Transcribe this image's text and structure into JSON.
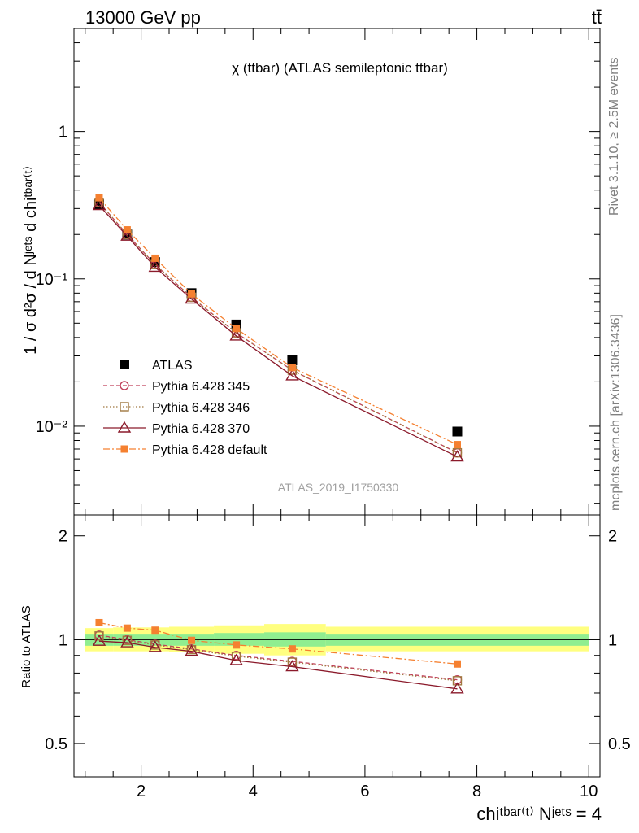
{
  "header": {
    "left": "13000 GeV pp",
    "right": "tt̄"
  },
  "side_labels": {
    "rivet": "Rivet 3.1.10, ≥ 2.5M events",
    "mcplots": "mcplots.cern.ch [arXiv:1306.3436]"
  },
  "chart_data": [
    {
      "type": "scatter",
      "panel": "main",
      "title": "χ (ttbar) (ATLAS semileptonic ttbar)",
      "watermark": "ATLAS_2019_I1750330",
      "ylabel": "1 / σ d²σ / d Nʲᵉᵗˢ d chiᵗᵇᵃʳ⁽ᵗ⁾",
      "yscale": "log",
      "ylim": [
        0.0025,
        5
      ],
      "xlim": [
        0.8,
        10.2
      ],
      "ytick_labels": [
        "10⁻²",
        "10⁻¹",
        "1"
      ],
      "legend_position": "lower-left",
      "x": [
        1.25,
        1.75,
        2.25,
        2.9,
        3.7,
        4.7,
        7.65
      ],
      "series": [
        {
          "name": "ATLAS",
          "color": "#000000",
          "marker": "filled-square",
          "line": "none",
          "values": [
            0.32,
            0.2,
            0.13,
            0.08,
            0.049,
            0.028,
            0.0092
          ]
        },
        {
          "name": "Pythia 6.428 345",
          "color": "#c0405a",
          "marker": "open-circle",
          "line": "dashed",
          "values": [
            0.33,
            0.2,
            0.125,
            0.075,
            0.043,
            0.024,
            0.0066
          ]
        },
        {
          "name": "Pythia 6.428 346",
          "color": "#a07840",
          "marker": "open-square",
          "line": "dotted",
          "values": [
            0.33,
            0.2,
            0.125,
            0.075,
            0.043,
            0.024,
            0.0066
          ]
        },
        {
          "name": "Pythia 6.428 370",
          "color": "#8b1a2b",
          "marker": "open-triangle",
          "line": "solid",
          "values": [
            0.315,
            0.195,
            0.12,
            0.073,
            0.041,
            0.022,
            0.0062
          ]
        },
        {
          "name": "Pythia 6.428 default",
          "color": "#f58030",
          "marker": "filled-square-small",
          "line": "dashdot",
          "values": [
            0.355,
            0.215,
            0.138,
            0.079,
            0.046,
            0.025,
            0.0075
          ]
        }
      ]
    },
    {
      "type": "line",
      "panel": "ratio",
      "ylabel": "Ratio to ATLAS",
      "xlabel": "chiᵗᵇᵃʳ⁽ᵗ⁾ Nʲᵉᵗˢ = 4",
      "yscale": "log",
      "ylim": [
        0.4,
        2.3
      ],
      "xlim": [
        0.8,
        10.2
      ],
      "ytick_labels": [
        "0.5",
        "1",
        "2"
      ],
      "xtick_labels": [
        "2",
        "4",
        "6",
        "8",
        "10"
      ],
      "band_edges": [
        1.0,
        1.5,
        2.0,
        2.5,
        3.3,
        4.2,
        5.3,
        10.0
      ],
      "band_stat": [
        [
          0.96,
          1.04
        ],
        [
          0.96,
          1.04
        ],
        [
          0.96,
          1.04
        ],
        [
          0.96,
          1.04
        ],
        [
          0.96,
          1.045
        ],
        [
          0.955,
          1.05
        ],
        [
          0.96,
          1.04
        ]
      ],
      "band_total": [
        [
          0.925,
          1.08
        ],
        [
          0.925,
          1.085
        ],
        [
          0.925,
          1.085
        ],
        [
          0.92,
          1.09
        ],
        [
          0.91,
          1.1
        ],
        [
          0.9,
          1.11
        ],
        [
          0.925,
          1.09
        ]
      ],
      "x": [
        1.25,
        1.75,
        2.25,
        2.9,
        3.7,
        4.7,
        7.65
      ],
      "series": [
        {
          "name": "Pythia 6.428 345",
          "color": "#c0405a",
          "marker": "open-circle",
          "line": "dashed",
          "values": [
            1.03,
            1.0,
            0.97,
            0.94,
            0.9,
            0.865,
            0.765
          ]
        },
        {
          "name": "Pythia 6.428 346",
          "color": "#a07840",
          "marker": "open-square",
          "line": "dotted",
          "values": [
            1.025,
            0.995,
            0.965,
            0.935,
            0.895,
            0.86,
            0.76
          ]
        },
        {
          "name": "Pythia 6.428 370",
          "color": "#8b1a2b",
          "marker": "open-triangle",
          "line": "solid",
          "values": [
            0.99,
            0.98,
            0.95,
            0.925,
            0.87,
            0.835,
            0.72
          ]
        },
        {
          "name": "Pythia 6.428 default",
          "color": "#f58030",
          "marker": "filled-square-small",
          "line": "dashdot",
          "values": [
            1.12,
            1.08,
            1.065,
            0.995,
            0.965,
            0.94,
            0.85
          ]
        }
      ]
    }
  ]
}
